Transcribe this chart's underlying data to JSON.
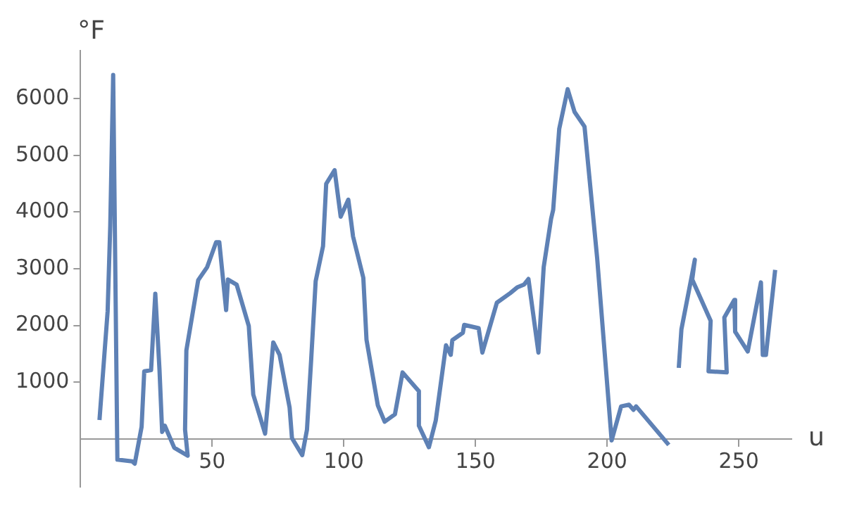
{
  "chart_data": {
    "type": "line",
    "xlabel": "u",
    "ylabel": "°F",
    "xlim": [
      0,
      270
    ],
    "ylim": [
      -850,
      6850
    ],
    "xticks": [
      50,
      100,
      150,
      200,
      250
    ],
    "yticks": [
      1000,
      2000,
      3000,
      4000,
      5000,
      6000
    ],
    "grid": false,
    "legend": false,
    "marker": "none",
    "line_style": "solid",
    "series": [
      {
        "color": "#5e81b5",
        "x": [
          7.2,
          10.3,
          11.3,
          12.4,
          14,
          19.6,
          20.6,
          23.2,
          24.2,
          26.8,
          28.4,
          30,
          31,
          32,
          35.6,
          40.7,
          39.7,
          40.2,
          44.7,
          48.1,
          51.5,
          52.7,
          55.3,
          56,
          59.3,
          63.9,
          65.6,
          70.1,
          73.2,
          75.6,
          79.4,
          80.3,
          84.2,
          86,
          87.6,
          89.3,
          92.1,
          93.3,
          96.5,
          98.8,
          101.7,
          103.5,
          107.4,
          108.6,
          112.9,
          115.5,
          119.4,
          122.3,
          128.5,
          128.5,
          132.3,
          134.9,
          138.8,
          140.6,
          141.2,
          145.2,
          145.7,
          151.2,
          152.6,
          158.1,
          163.2,
          165.8,
          168.4,
          170.1,
          173.9,
          175.9,
          178.7,
          179.5,
          181.8,
          185,
          187.6,
          191.4,
          196.2,
          201.7,
          205.3,
          208.3,
          210,
          211,
          223.4,
          225,
          227.2,
          228.2,
          232,
          233.3,
          232.3,
          239.3,
          238.5,
          245.4,
          244.5,
          248.3,
          248.6,
          253.4,
          258.4,
          259.1,
          260.3,
          263.8
        ],
        "values": [
          330,
          2250,
          3770,
          6420,
          -370,
          -400,
          -440,
          210,
          1190,
          1210,
          2560,
          1210,
          120,
          230,
          -160,
          -300,
          160,
          1560,
          2800,
          3030,
          3470,
          3470,
          2270,
          2810,
          2720,
          1990,
          780,
          90,
          1700,
          1480,
          550,
          10,
          -290,
          160,
          1400,
          2780,
          3400,
          4500,
          4740,
          3920,
          4220,
          3570,
          2840,
          1750,
          590,
          300,
          430,
          1170,
          840,
          230,
          -150,
          320,
          1650,
          1480,
          1740,
          1870,
          2010,
          1950,
          1520,
          2400,
          2570,
          2670,
          2720,
          2820,
          1520,
          3030,
          3880,
          4040,
          5470,
          6170,
          5770,
          5510,
          3190,
          -30,
          570,
          600,
          510,
          570,
          -110,
          null,
          1250,
          1930,
          2840,
          3160,
          2810,
          2080,
          1190,
          1170,
          2140,
          2450,
          1890,
          1540,
          2760,
          1480,
          1480,
          2980
        ]
      }
    ]
  }
}
